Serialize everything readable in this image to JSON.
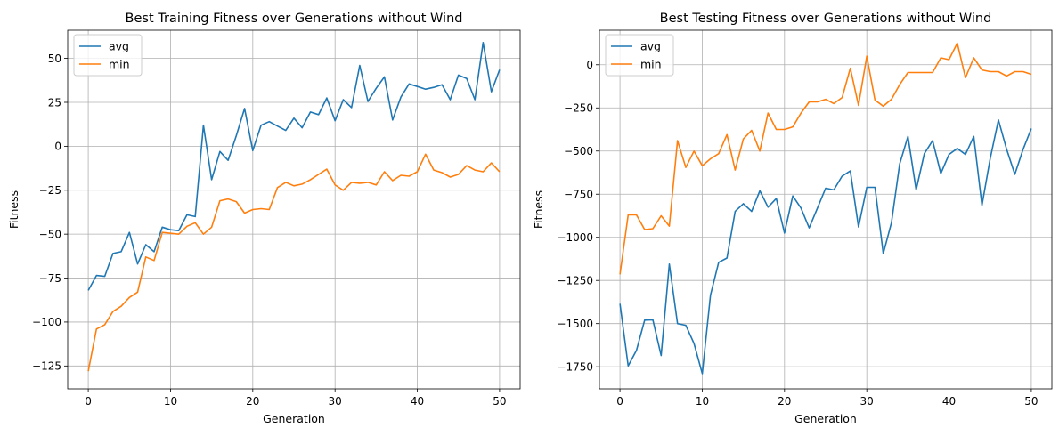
{
  "chart_data": [
    {
      "type": "line",
      "title": "Best Training Fitness over Generations without Wind",
      "xlabel": "Generation",
      "ylabel": "Fitness",
      "xlim": [
        -2.5,
        52.5
      ],
      "ylim": [
        -138,
        66
      ],
      "xticks": [
        0,
        10,
        20,
        30,
        40,
        50
      ],
      "yticks": [
        -125,
        -100,
        -75,
        -50,
        -25,
        0,
        25,
        50
      ],
      "ytick_labels": [
        "−125",
        "−100",
        "−75",
        "−50",
        "−25",
        "0",
        "25",
        "50"
      ],
      "grid": true,
      "legend_position": "top-left",
      "x": [
        0,
        1,
        2,
        3,
        4,
        5,
        6,
        7,
        8,
        9,
        10,
        11,
        12,
        13,
        14,
        15,
        16,
        17,
        18,
        19,
        20,
        21,
        22,
        23,
        24,
        25,
        26,
        27,
        28,
        29,
        30,
        31,
        32,
        33,
        34,
        35,
        36,
        37,
        38,
        39,
        40,
        41,
        42,
        43,
        44,
        45,
        46,
        47,
        48,
        49,
        50
      ],
      "series": [
        {
          "name": "avg",
          "color": "#1f77b4",
          "values": [
            -82,
            -73.5,
            -74,
            -61,
            -60,
            -49,
            -67,
            -56,
            -60,
            -46,
            -47.5,
            -48,
            -39,
            -40,
            12,
            -19,
            -3,
            -8,
            6,
            21.5,
            -2.5,
            12,
            14,
            11.5,
            9,
            16,
            10.5,
            19.5,
            18,
            27.5,
            14.5,
            26.5,
            22,
            46,
            25.5,
            33,
            39.5,
            15,
            28,
            35.5,
            34,
            32.5,
            33.5,
            35,
            26.5,
            40.5,
            38.5,
            26.5,
            59,
            31,
            43.5
          ]
        },
        {
          "name": "min",
          "color": "#ff7f0e",
          "values": [
            -128,
            -104,
            -101.5,
            -94,
            -91,
            -86,
            -83,
            -63,
            -65,
            -49,
            -49.5,
            -50,
            -45.5,
            -43.5,
            -50,
            -46,
            -31,
            -30,
            -31.5,
            -38,
            -36,
            -35.5,
            -36,
            -23.5,
            -20.5,
            -22.5,
            -21.5,
            -19,
            -16,
            -13,
            -22,
            -25,
            -20.5,
            -21,
            -20.5,
            -22,
            -14.5,
            -19.5,
            -16.5,
            -17,
            -14.5,
            -4.5,
            -13.5,
            -15,
            -17.5,
            -16,
            -11,
            -13.5,
            -14.5,
            -9.5,
            -14.5
          ]
        }
      ]
    },
    {
      "type": "line",
      "title": "Best Testing Fitness over Generations without Wind",
      "xlabel": "Generation",
      "ylabel": "Fitness",
      "xlim": [
        -2.5,
        52.5
      ],
      "ylim": [
        -1878,
        200
      ],
      "xticks": [
        0,
        10,
        20,
        30,
        40,
        50
      ],
      "yticks": [
        -1750,
        -1500,
        -1250,
        -1000,
        -750,
        -500,
        -250,
        0
      ],
      "ytick_labels": [
        "−1750",
        "−1500",
        "−1250",
        "−1000",
        "−750",
        "−500",
        "−250",
        "0"
      ],
      "grid": true,
      "legend_position": "top-left",
      "x": [
        0,
        1,
        2,
        3,
        4,
        5,
        6,
        7,
        8,
        9,
        10,
        11,
        12,
        13,
        14,
        15,
        16,
        17,
        18,
        19,
        20,
        21,
        22,
        23,
        24,
        25,
        26,
        27,
        28,
        29,
        30,
        31,
        32,
        33,
        34,
        35,
        36,
        37,
        38,
        39,
        40,
        41,
        42,
        43,
        44,
        45,
        46,
        47,
        48,
        49,
        50
      ],
      "series": [
        {
          "name": "avg",
          "color": "#1f77b4",
          "values": [
            -1385,
            -1745,
            -1655,
            -1480,
            -1478,
            -1685,
            -1155,
            -1500,
            -1510,
            -1615,
            -1790,
            -1335,
            -1145,
            -1120,
            -850,
            -805,
            -850,
            -730,
            -825,
            -775,
            -975,
            -760,
            -830,
            -945,
            -830,
            -715,
            -725,
            -645,
            -615,
            -940,
            -710,
            -710,
            -1095,
            -915,
            -575,
            -415,
            -725,
            -515,
            -440,
            -630,
            -520,
            -485,
            -520,
            -415,
            -815,
            -545,
            -320,
            -490,
            -635,
            -490,
            -370
          ]
        },
        {
          "name": "min",
          "color": "#ff7f0e",
          "values": [
            -1215,
            -870,
            -870,
            -955,
            -950,
            -875,
            -935,
            -440,
            -595,
            -500,
            -585,
            -545,
            -515,
            -405,
            -610,
            -430,
            -380,
            -500,
            -280,
            -375,
            -375,
            -360,
            -280,
            -215,
            -215,
            -200,
            -225,
            -190,
            -20,
            -235,
            50,
            -205,
            -240,
            -200,
            -115,
            -45,
            -45,
            -45,
            -45,
            40,
            30,
            125,
            -75,
            40,
            -30,
            -40,
            -40,
            -65,
            -40,
            -40,
            -55
          ]
        }
      ]
    }
  ]
}
